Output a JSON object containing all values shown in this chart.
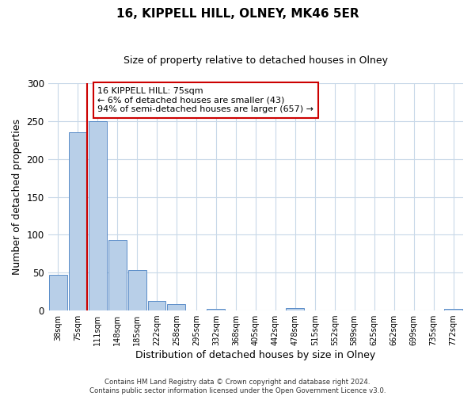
{
  "title": "16, KIPPELL HILL, OLNEY, MK46 5ER",
  "subtitle": "Size of property relative to detached houses in Olney",
  "xlabel": "Distribution of detached houses by size in Olney",
  "ylabel": "Number of detached properties",
  "footer_line1": "Contains HM Land Registry data © Crown copyright and database right 2024.",
  "footer_line2": "Contains public sector information licensed under the Open Government Licence v3.0.",
  "bar_labels": [
    "38sqm",
    "75sqm",
    "111sqm",
    "148sqm",
    "185sqm",
    "222sqm",
    "258sqm",
    "295sqm",
    "332sqm",
    "368sqm",
    "405sqm",
    "442sqm",
    "478sqm",
    "515sqm",
    "552sqm",
    "589sqm",
    "625sqm",
    "662sqm",
    "699sqm",
    "735sqm",
    "772sqm"
  ],
  "bar_values": [
    47,
    235,
    250,
    93,
    53,
    13,
    8,
    0,
    2,
    0,
    0,
    0,
    3,
    0,
    0,
    0,
    0,
    0,
    0,
    0,
    2
  ],
  "bar_color": "#b8cfe8",
  "bar_edgecolor": "#5b8dc8",
  "ylim": [
    0,
    300
  ],
  "yticks": [
    0,
    50,
    100,
    150,
    200,
    250,
    300
  ],
  "red_line_bar_index": 1,
  "annotation_title": "16 KIPPELL HILL: 75sqm",
  "annotation_line2": "← 6% of detached houses are smaller (43)",
  "annotation_line3": "94% of semi-detached houses are larger (657) →",
  "annotation_box_color": "#ffffff",
  "annotation_box_edgecolor": "#cc0000",
  "bg_color": "#ffffff",
  "grid_color": "#c8d8e8"
}
